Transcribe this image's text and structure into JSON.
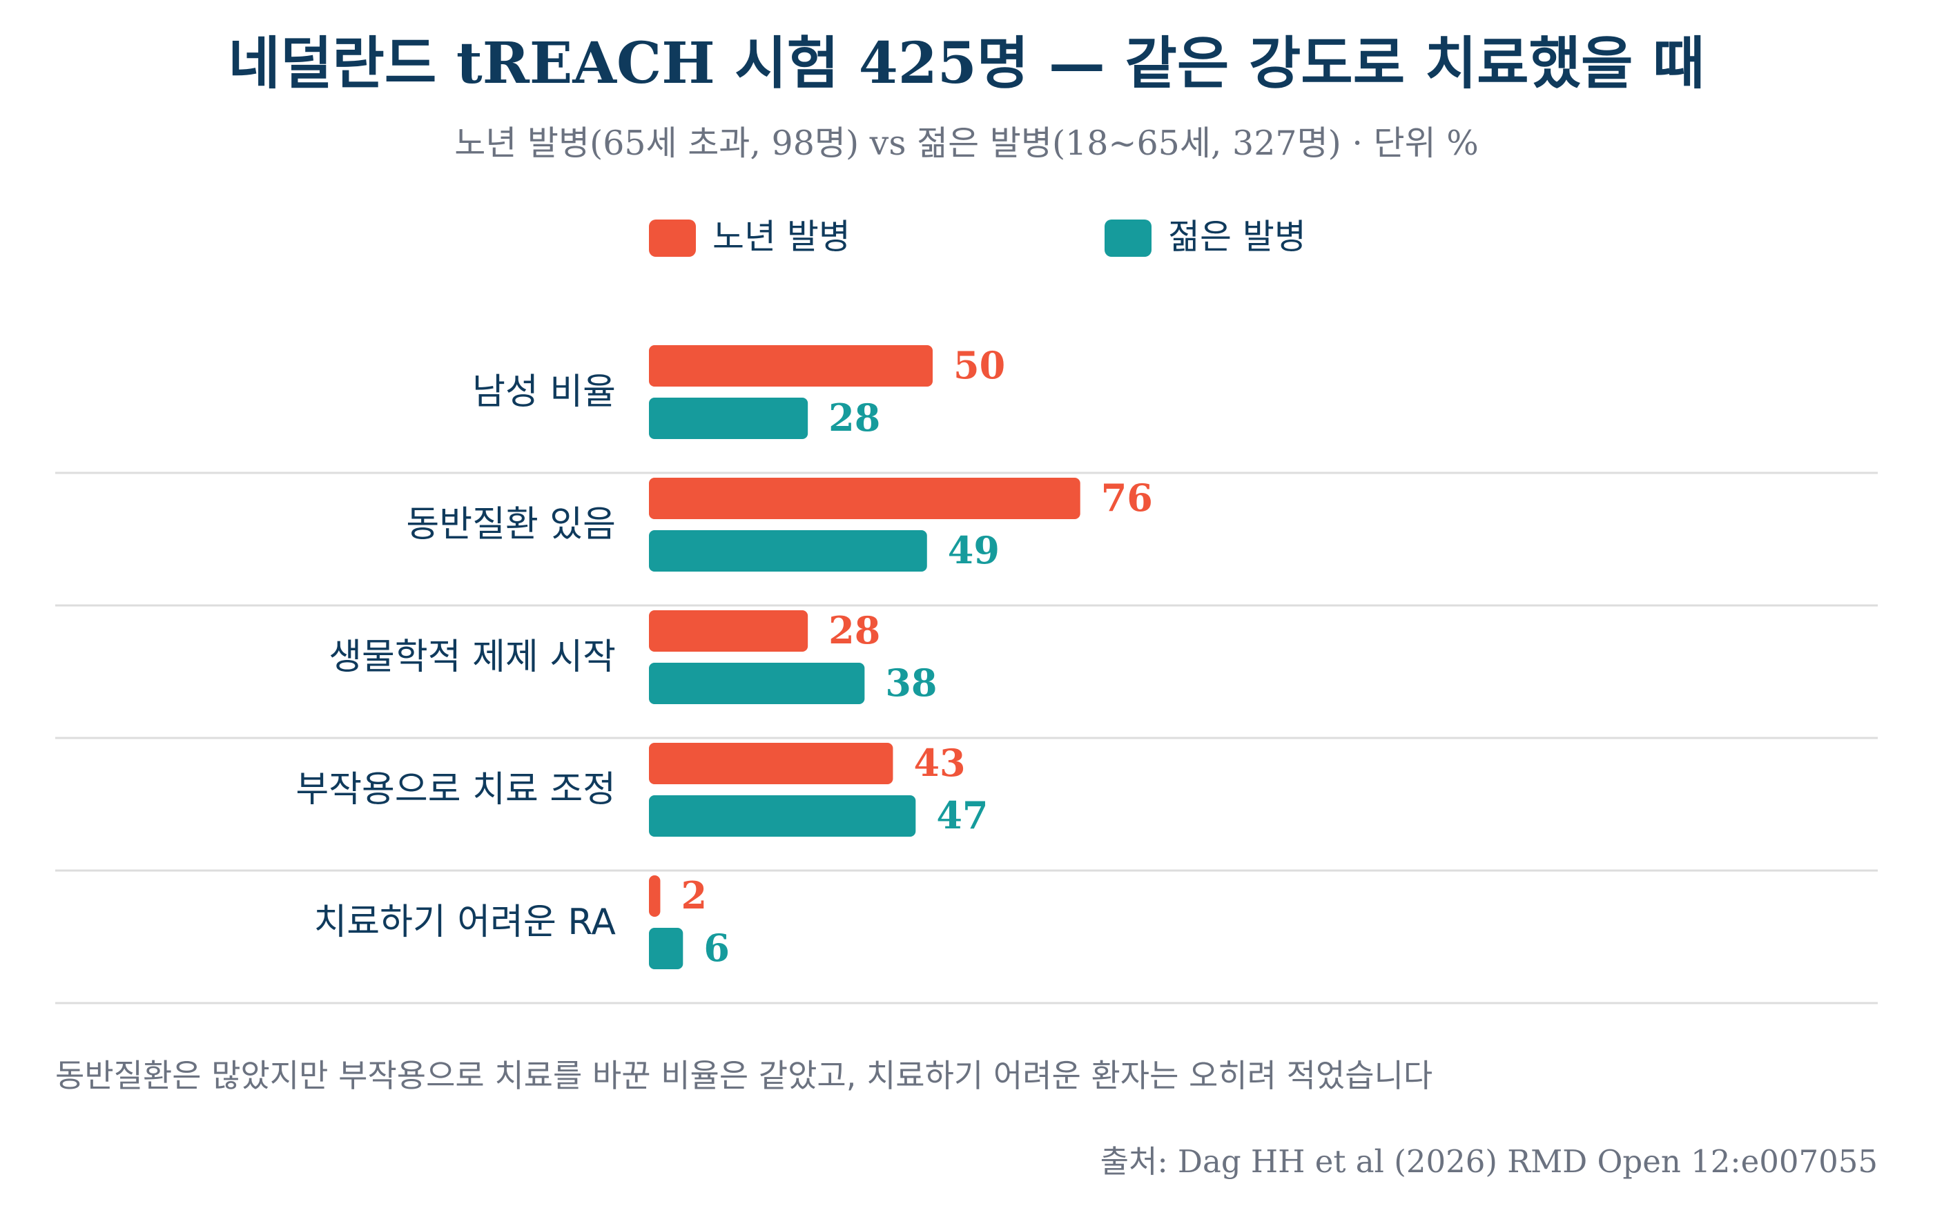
{
  "chart_data": {
    "type": "bar",
    "orientation": "horizontal",
    "title": "네덜란드 tREACH 시험 425명 — 같은 강도로 치료했을 때",
    "subtitle": "노년 발병(65세 초과, 98명) vs 젊은 발병(18~65세, 327명) · 단위 %",
    "categories": [
      "남성 비율",
      "동반질환 있음",
      "생물학적 제제 시작",
      "부작용으로 치료 조정",
      "치료하기 어려운 RA"
    ],
    "series": [
      {
        "name": "노년 발병",
        "color": "#f0553a",
        "values": [
          50,
          76,
          28,
          43,
          2
        ]
      },
      {
        "name": "젊은 발병",
        "color": "#169b9c",
        "values": [
          28,
          49,
          38,
          47,
          6
        ]
      }
    ],
    "xlim": [
      0,
      100
    ],
    "grid": false,
    "legend_position": "top",
    "footnote": "동반질환은 많았지만 부작용으로 치료를 바꾼 비율은 같았고, 치료하기 어려운 환자는 오히려 적었습니다",
    "source": "출처: Dag HH et al (2026) RMD Open 12:e007055",
    "colors": {
      "title": "#0f3a5c",
      "subtitle": "#6b7280",
      "category_label": "#0f3a5c",
      "footnote": "#6b7280",
      "separator": "#dddddd"
    }
  }
}
